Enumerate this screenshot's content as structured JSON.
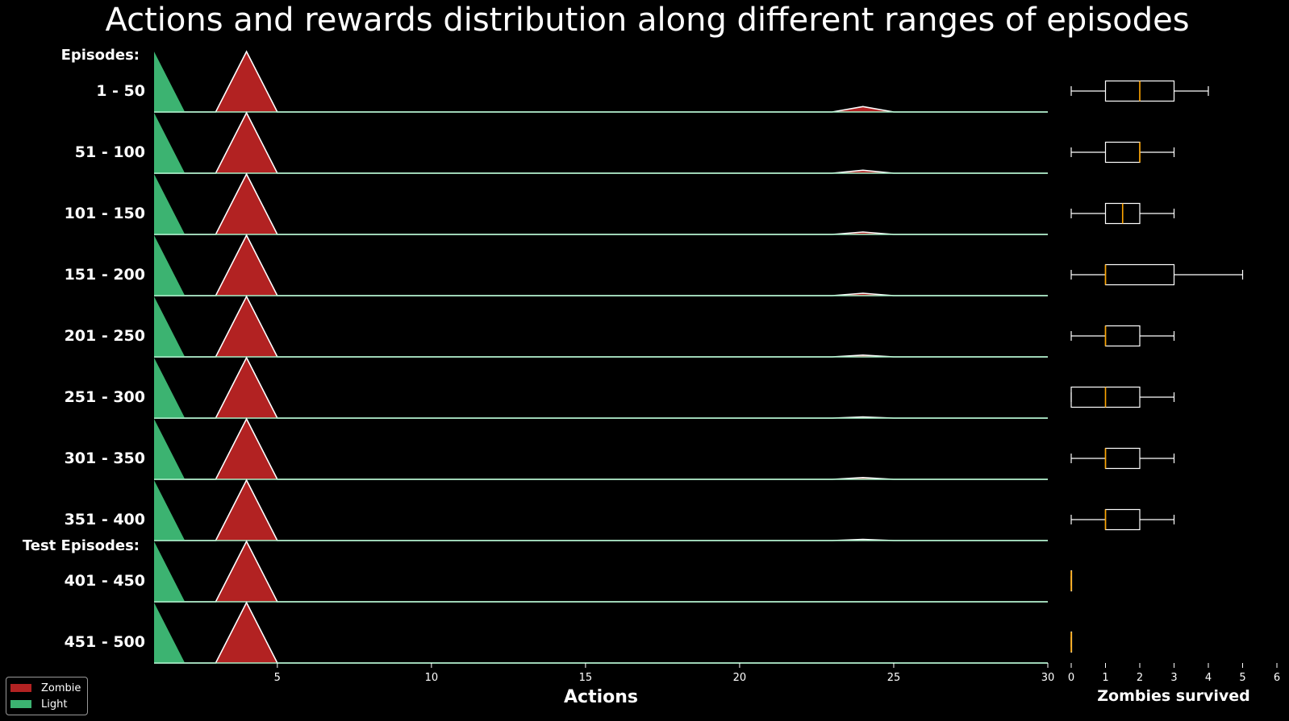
{
  "title": "Actions and rewards distribution along different ranges of episodes",
  "section_labels": {
    "train": "Episodes:",
    "test": "Test Episodes:"
  },
  "legend": {
    "location": "lower-left",
    "items": [
      {
        "label": "Zombie",
        "color": "#b22222"
      },
      {
        "label": "Light",
        "color": "#3cb371"
      }
    ]
  },
  "chart_data": [
    {
      "type": "area",
      "subtype": "ridgeline",
      "xlabel": "Actions",
      "xlim": [
        1,
        30
      ],
      "xticks": [
        5,
        10,
        15,
        20,
        25,
        30
      ],
      "rows": [
        "1 - 50",
        "51 - 100",
        "101 - 150",
        "151 - 200",
        "201 - 250",
        "251 - 300",
        "301 - 350",
        "351 - 400",
        "401 - 450",
        "451 - 500"
      ],
      "series": [
        {
          "name": "Light",
          "color": "#3cb371",
          "x": [
            1,
            2
          ],
          "y": [
            1,
            0
          ]
        },
        {
          "name": "Zombie",
          "color": "#b22222",
          "x": [
            3,
            4,
            5,
            23,
            24,
            25
          ],
          "y_by_row": [
            [
              0,
              1,
              0,
              0,
              0.09,
              0
            ],
            [
              0,
              1,
              0,
              0,
              0.05,
              0
            ],
            [
              0,
              1,
              0,
              0,
              0.04,
              0
            ],
            [
              0,
              1,
              0,
              0,
              0.04,
              0
            ],
            [
              0,
              1,
              0,
              0,
              0.03,
              0
            ],
            [
              0,
              1,
              0,
              0,
              0.02,
              0
            ],
            [
              0,
              1,
              0,
              0,
              0.03,
              0
            ],
            [
              0,
              1,
              0,
              0,
              0.02,
              0
            ],
            [
              0,
              1,
              0,
              0,
              0,
              0
            ],
            [
              0,
              1,
              0,
              0,
              0,
              0
            ]
          ]
        }
      ]
    },
    {
      "type": "boxplot",
      "xlabel": "Zombies survived",
      "xlim": [
        0,
        6
      ],
      "xticks": [
        0,
        1,
        2,
        3,
        4,
        5,
        6
      ],
      "boxes": [
        {
          "row": "1 - 50",
          "min": 0,
          "q1": 1,
          "median": 2,
          "q3": 3,
          "max": 4
        },
        {
          "row": "51 - 100",
          "min": 0,
          "q1": 1,
          "median": 2,
          "q3": 2,
          "max": 3
        },
        {
          "row": "101 - 150",
          "min": 0,
          "q1": 1,
          "median": 1.5,
          "q3": 2,
          "max": 3
        },
        {
          "row": "151 - 200",
          "min": 0,
          "q1": 1,
          "median": 1,
          "q3": 3,
          "max": 5
        },
        {
          "row": "201 - 250",
          "min": 0,
          "q1": 1,
          "median": 1,
          "q3": 2,
          "max": 3
        },
        {
          "row": "251 - 300",
          "min": 0,
          "q1": 0,
          "median": 1,
          "q3": 2,
          "max": 3
        },
        {
          "row": "301 - 350",
          "min": 0,
          "q1": 1,
          "median": 1,
          "q3": 2,
          "max": 3
        },
        {
          "row": "351 - 400",
          "min": 0,
          "q1": 1,
          "median": 1,
          "q3": 2,
          "max": 3
        },
        {
          "row": "401 - 450",
          "min": 0,
          "q1": 0,
          "median": 0,
          "q3": 0,
          "max": 0
        },
        {
          "row": "451 - 500",
          "min": 0,
          "q1": 0,
          "median": 0,
          "q3": 0,
          "max": 0
        }
      ],
      "median_color": "#ffa500",
      "box_color": "#ffffff"
    }
  ]
}
